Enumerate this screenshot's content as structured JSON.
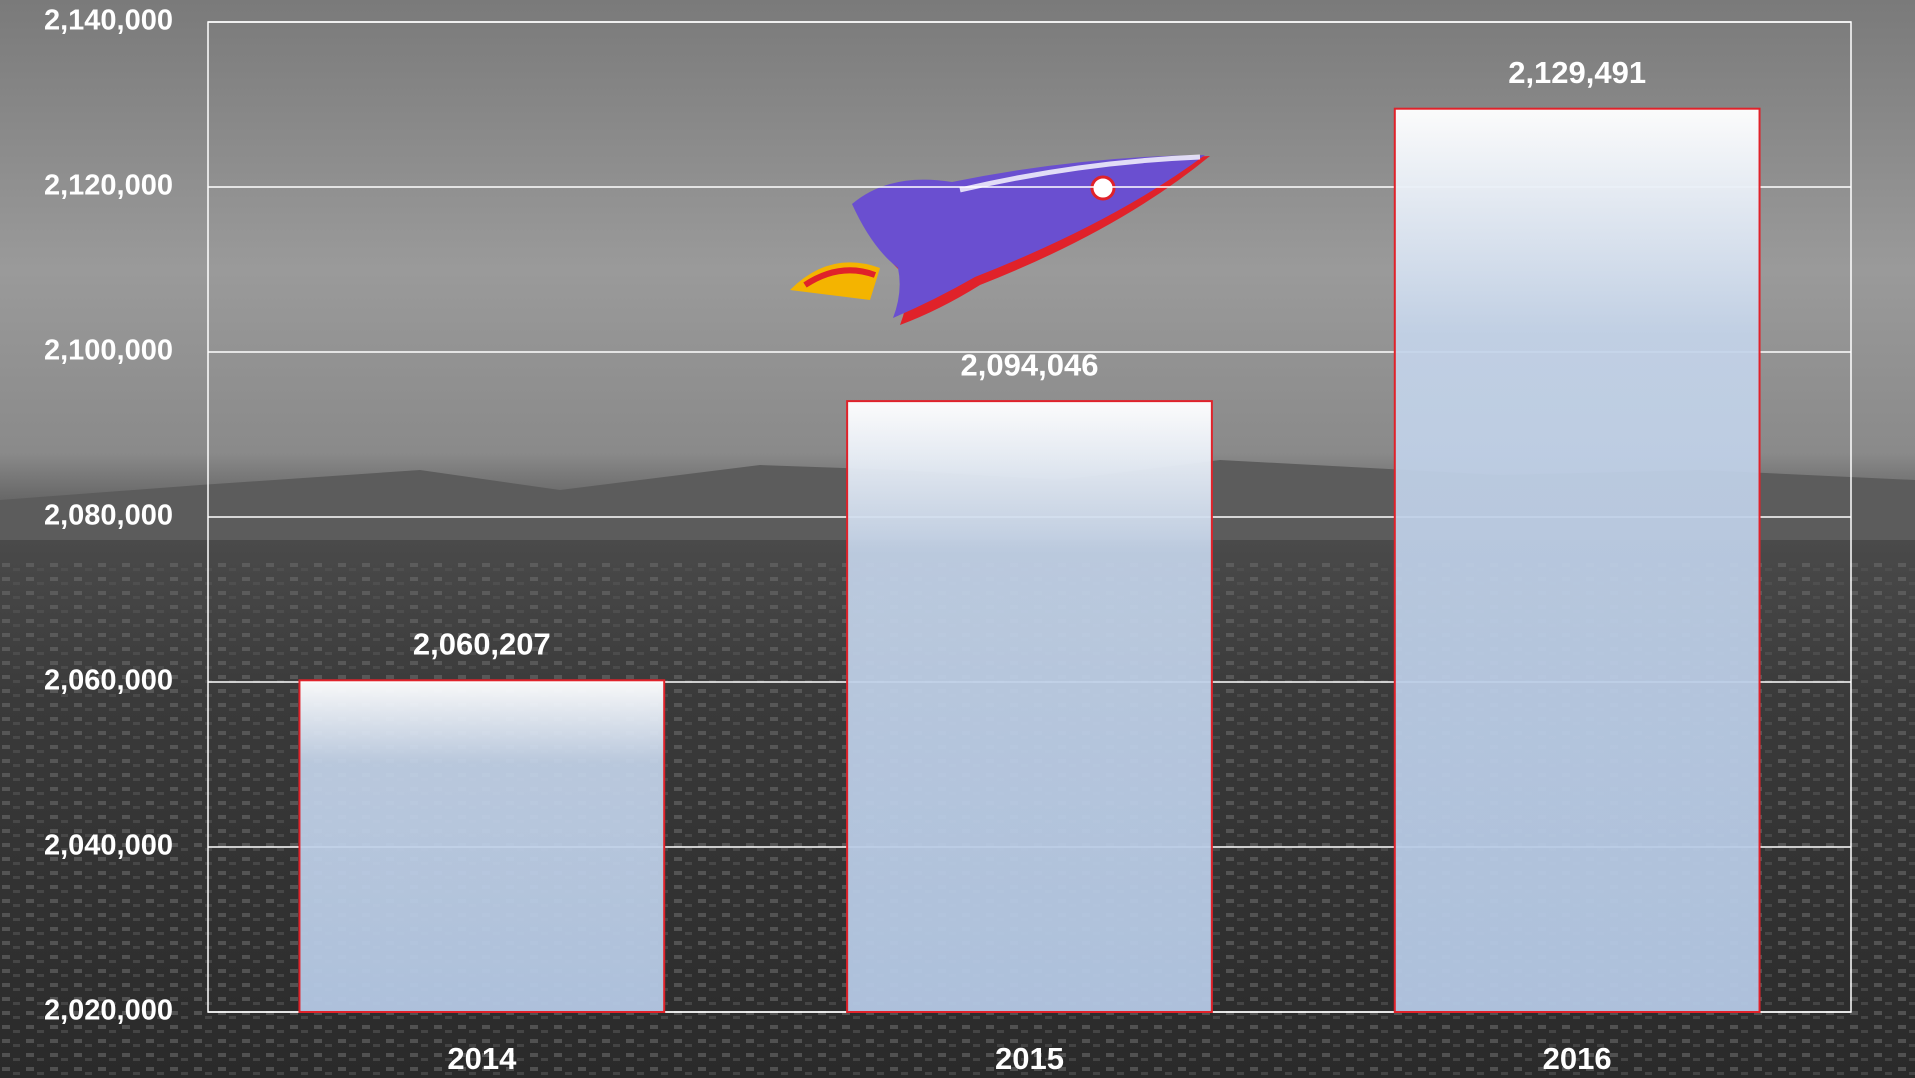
{
  "chart_data": {
    "type": "bar",
    "categories": [
      "2014",
      "2015",
      "2016"
    ],
    "values": [
      2060207,
      2094046,
      2129491
    ],
    "value_labels": [
      "2,060,207",
      "2,094,046",
      "2,129,491"
    ],
    "ylim": [
      2020000,
      2140000
    ],
    "yticks": [
      {
        "value": 2020000,
        "label": "2,020,000"
      },
      {
        "value": 2040000,
        "label": "2,040,000"
      },
      {
        "value": 2060000,
        "label": "2,060,000"
      },
      {
        "value": 2080000,
        "label": "2,080,000"
      },
      {
        "value": 2100000,
        "label": "2,100,000"
      },
      {
        "value": 2120000,
        "label": "2,120,000"
      },
      {
        "value": 2140000,
        "label": "2,140,000"
      }
    ],
    "grid": true,
    "color": "#b4c8e4",
    "edge_color": "#e0222a"
  }
}
